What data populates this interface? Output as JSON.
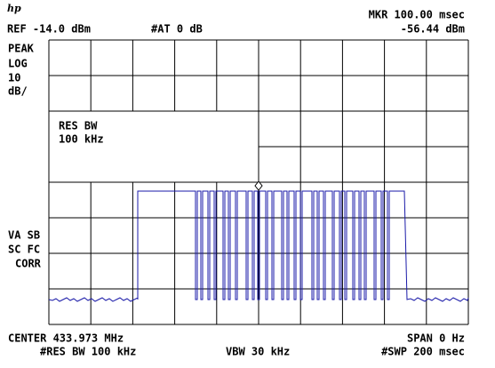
{
  "header": {
    "logo": "hp",
    "ref": "REF -14.0 dBm",
    "atten": "#AT 0 dB",
    "marker": "MKR 100.00 msec",
    "marker_level": "-56.44 dBm"
  },
  "left_labels": {
    "detector": "PEAK",
    "scale": "LOG",
    "scale_value": "10",
    "scale_unit": "dB/",
    "va_sb": "VA SB",
    "sc_fc": "SC FC",
    "corr": "CORR"
  },
  "annotation": {
    "line1": "RES BW",
    "line2": "100 kHz"
  },
  "footer": {
    "center": "CENTER 433.973 MHz",
    "span": "SPAN 0 Hz",
    "res_bw": "#RES BW 100 kHz",
    "vbw": "VBW 30 kHz",
    "sweep": "#SWP 200 msec"
  }
}
